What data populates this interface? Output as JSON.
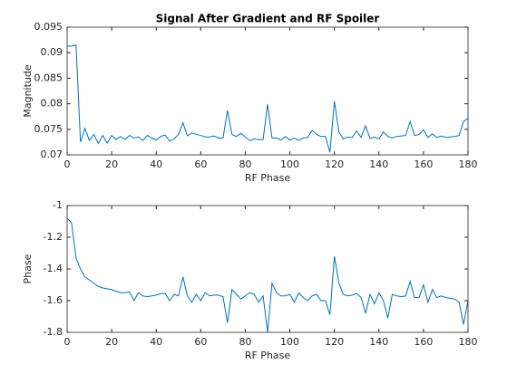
{
  "chart_data": [
    {
      "type": "line",
      "title": "Signal After Gradient and RF Spoiler",
      "xlabel": "RF Phase",
      "ylabel": "Magnitude",
      "x": [
        0,
        2,
        4,
        6,
        8,
        10,
        12,
        14,
        16,
        18,
        20,
        22,
        24,
        26,
        28,
        30,
        32,
        34,
        36,
        38,
        40,
        42,
        44,
        46,
        48,
        50,
        52,
        54,
        56,
        58,
        60,
        62,
        64,
        66,
        68,
        70,
        72,
        74,
        76,
        78,
        80,
        82,
        84,
        86,
        88,
        90,
        92,
        94,
        96,
        98,
        100,
        102,
        104,
        106,
        108,
        110,
        112,
        114,
        116,
        118,
        120,
        122,
        124,
        126,
        128,
        130,
        132,
        134,
        136,
        138,
        140,
        142,
        144,
        146,
        148,
        150,
        152,
        154,
        156,
        158,
        160,
        162,
        164,
        166,
        168,
        170,
        172,
        174,
        176,
        178,
        180
      ],
      "values": [
        0.0913,
        0.0913,
        0.0915,
        0.0725,
        0.0752,
        0.0728,
        0.074,
        0.0722,
        0.0738,
        0.0723,
        0.0738,
        0.073,
        0.0736,
        0.073,
        0.0738,
        0.0733,
        0.0735,
        0.0728,
        0.0738,
        0.0733,
        0.0729,
        0.0736,
        0.0739,
        0.0727,
        0.0731,
        0.074,
        0.0763,
        0.0737,
        0.0743,
        0.074,
        0.0738,
        0.0735,
        0.0735,
        0.0737,
        0.0733,
        0.0733,
        0.0787,
        0.074,
        0.0736,
        0.0742,
        0.0735,
        0.0728,
        0.0731,
        0.073,
        0.073,
        0.0799,
        0.0733,
        0.0733,
        0.0729,
        0.0736,
        0.0729,
        0.0733,
        0.0728,
        0.0733,
        0.0734,
        0.0748,
        0.074,
        0.0736,
        0.0736,
        0.0705,
        0.0805,
        0.0745,
        0.0731,
        0.0735,
        0.0734,
        0.0747,
        0.0734,
        0.0757,
        0.0732,
        0.0735,
        0.0731,
        0.0745,
        0.0736,
        0.0733,
        0.0736,
        0.0737,
        0.0738,
        0.0765,
        0.0738,
        0.074,
        0.0749,
        0.0734,
        0.0741,
        0.0734,
        0.0737,
        0.0734,
        0.0735,
        0.0736,
        0.0738,
        0.0765,
        0.0772
      ],
      "color": "#0072bd",
      "xlim": [
        0,
        180
      ],
      "xticks": [
        0,
        20,
        40,
        60,
        80,
        100,
        120,
        140,
        160,
        180
      ],
      "ylim": [
        0.07,
        0.095
      ],
      "yticks": [
        0.07,
        0.075,
        0.08,
        0.085,
        0.09,
        0.095
      ]
    },
    {
      "type": "line",
      "xlabel": "RF Phase",
      "ylabel": "Phase",
      "x": [
        0,
        2,
        4,
        6,
        8,
        10,
        12,
        14,
        16,
        18,
        20,
        22,
        24,
        26,
        28,
        30,
        32,
        34,
        36,
        38,
        40,
        42,
        44,
        46,
        48,
        50,
        52,
        54,
        56,
        58,
        60,
        62,
        64,
        66,
        68,
        70,
        72,
        74,
        76,
        78,
        80,
        82,
        84,
        86,
        88,
        90,
        92,
        94,
        96,
        98,
        100,
        102,
        104,
        106,
        108,
        110,
        112,
        114,
        116,
        118,
        120,
        122,
        124,
        126,
        128,
        130,
        132,
        134,
        136,
        138,
        140,
        142,
        144,
        146,
        148,
        150,
        152,
        154,
        156,
        158,
        160,
        162,
        164,
        166,
        168,
        170,
        172,
        174,
        176,
        178,
        180
      ],
      "values": [
        -1.08,
        -1.11,
        -1.33,
        -1.4,
        -1.45,
        -1.47,
        -1.49,
        -1.51,
        -1.52,
        -1.525,
        -1.53,
        -1.54,
        -1.55,
        -1.55,
        -1.545,
        -1.6,
        -1.55,
        -1.57,
        -1.575,
        -1.57,
        -1.565,
        -1.555,
        -1.555,
        -1.6,
        -1.56,
        -1.57,
        -1.45,
        -1.57,
        -1.61,
        -1.56,
        -1.6,
        -1.55,
        -1.57,
        -1.565,
        -1.565,
        -1.575,
        -1.74,
        -1.53,
        -1.56,
        -1.59,
        -1.57,
        -1.55,
        -1.56,
        -1.61,
        -1.57,
        -1.8,
        -1.49,
        -1.55,
        -1.57,
        -1.57,
        -1.56,
        -1.61,
        -1.55,
        -1.58,
        -1.6,
        -1.57,
        -1.56,
        -1.6,
        -1.6,
        -1.69,
        -1.32,
        -1.49,
        -1.56,
        -1.57,
        -1.565,
        -1.555,
        -1.58,
        -1.68,
        -1.56,
        -1.62,
        -1.55,
        -1.6,
        -1.71,
        -1.56,
        -1.57,
        -1.575,
        -1.57,
        -1.48,
        -1.58,
        -1.58,
        -1.5,
        -1.61,
        -1.53,
        -1.58,
        -1.57,
        -1.58,
        -1.585,
        -1.59,
        -1.61,
        -1.75,
        -1.6
      ],
      "color": "#0072bd",
      "xlim": [
        0,
        180
      ],
      "xticks": [
        0,
        20,
        40,
        60,
        80,
        100,
        120,
        140,
        160,
        180
      ],
      "ylim": [
        -1.8,
        -1
      ],
      "yticks": [
        -1.8,
        -1.6,
        -1.4,
        -1.2,
        -1
      ]
    }
  ]
}
